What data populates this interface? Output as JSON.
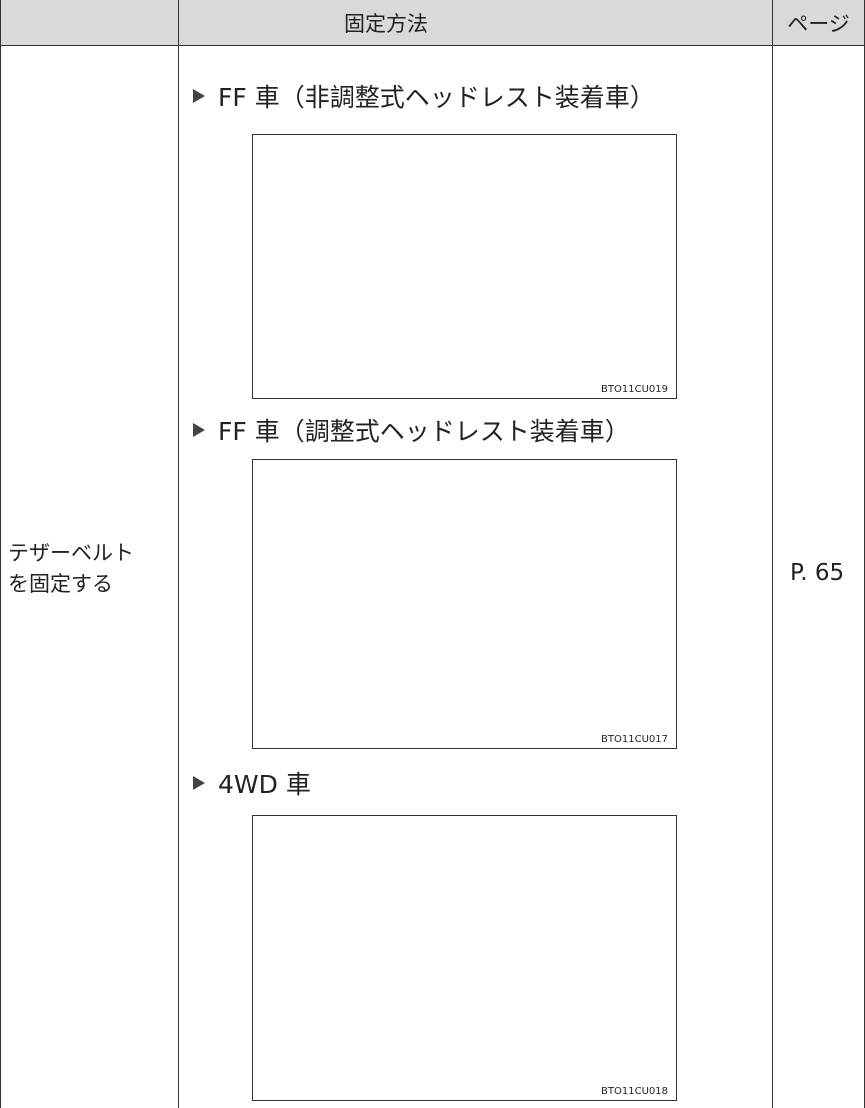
{
  "table": {
    "headers": [
      "固定方法",
      "ページ"
    ],
    "row": {
      "item": [
        "テザーベルト",
        "を固定する"
      ],
      "sections": [
        {
          "label": "FF 車（非調整式ヘッドレスト装着車）",
          "image_code": "BTO11CU019"
        },
        {
          "label": "FF 車（調整式ヘッドレスト装着車）",
          "image_code": "BTO11CU017"
        },
        {
          "label": "4WD 車",
          "image_code": "BTO11CU018"
        }
      ],
      "page": "P. 65"
    }
  }
}
